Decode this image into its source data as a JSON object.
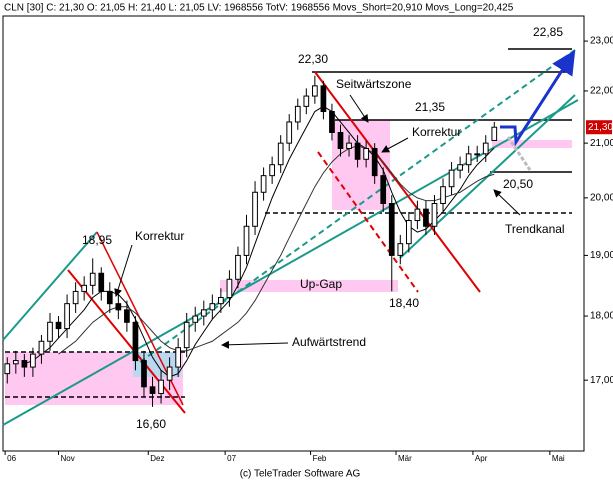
{
  "header": "CLN [30]  C: 21,30 O: 21,05 H: 21,40 L: 21,05 LV: 1968556 TotV: 1968556 Movs_Short=20,910 Movs_Long=20,425",
  "footer": "(c) TeleTrader Software AG",
  "chart_data": {
    "type": "candlestick",
    "x": [
      1,
      3,
      5,
      7,
      9,
      11,
      13,
      15,
      17,
      19,
      21,
      23,
      25,
      27,
      29,
      31,
      33,
      35,
      37,
      39,
      41,
      43,
      45,
      47,
      49,
      51,
      53,
      55,
      57,
      59,
      61,
      63,
      65,
      67,
      69,
      71,
      73,
      75,
      77,
      79,
      81,
      83,
      85,
      87,
      89,
      91,
      93,
      95,
      97,
      99,
      101,
      103,
      105,
      107,
      109,
      111,
      113,
      115
    ],
    "open": [
      17.1,
      17.25,
      17.3,
      17.2,
      17.4,
      17.6,
      17.9,
      17.8,
      18.2,
      18.4,
      18.5,
      18.7,
      18.4,
      18.2,
      18.1,
      17.9,
      17.3,
      16.9,
      16.8,
      17.0,
      17.2,
      17.5,
      17.9,
      18.0,
      18.1,
      18.2,
      18.3,
      18.6,
      19.0,
      19.5,
      20.1,
      20.4,
      20.6,
      21.0,
      21.4,
      21.7,
      21.9,
      22.1,
      21.6,
      21.2,
      20.9,
      21.0,
      20.7,
      20.9,
      20.4,
      19.9,
      19.0,
      19.2,
      19.6,
      19.8,
      19.5,
      19.9,
      20.2,
      20.5,
      20.6,
      20.8,
      20.8,
      21.05
    ],
    "high": [
      17.35,
      17.45,
      17.4,
      17.5,
      17.7,
      18.05,
      18.0,
      18.35,
      18.55,
      18.65,
      18.95,
      18.8,
      18.55,
      18.35,
      18.25,
      18.0,
      17.45,
      17.05,
      17.15,
      17.35,
      17.65,
      18.05,
      18.15,
      18.25,
      18.35,
      18.45,
      18.75,
      19.15,
      19.7,
      20.3,
      20.55,
      20.75,
      21.15,
      21.55,
      21.85,
      22.05,
      22.3,
      22.2,
      21.75,
      21.35,
      21.15,
      21.15,
      21.05,
      21.0,
      20.55,
      20.05,
      19.35,
      19.75,
      19.95,
      19.95,
      20.05,
      20.35,
      20.65,
      20.75,
      20.95,
      20.95,
      21.15,
      21.4
    ],
    "low": [
      16.95,
      17.1,
      17.05,
      17.05,
      17.25,
      17.45,
      17.65,
      17.65,
      18.05,
      18.25,
      18.35,
      18.25,
      18.05,
      17.95,
      17.75,
      17.15,
      16.75,
      16.6,
      16.65,
      16.85,
      17.05,
      17.35,
      17.75,
      17.85,
      17.95,
      18.05,
      18.15,
      18.45,
      18.85,
      19.35,
      19.95,
      20.25,
      20.45,
      20.85,
      21.25,
      21.55,
      21.75,
      21.45,
      21.05,
      20.75,
      20.75,
      20.55,
      20.55,
      20.25,
      19.75,
      18.4,
      18.85,
      19.05,
      19.45,
      19.35,
      19.35,
      19.75,
      20.05,
      20.35,
      20.45,
      20.65,
      20.65,
      21.05
    ],
    "close": [
      17.25,
      17.3,
      17.2,
      17.4,
      17.6,
      17.9,
      17.8,
      18.2,
      18.4,
      18.5,
      18.7,
      18.4,
      18.2,
      18.1,
      17.9,
      17.3,
      16.9,
      16.8,
      17.0,
      17.2,
      17.5,
      17.9,
      18.0,
      18.1,
      18.2,
      18.3,
      18.6,
      19.0,
      19.5,
      20.1,
      20.4,
      20.6,
      21.0,
      21.4,
      21.7,
      21.9,
      22.1,
      21.6,
      21.2,
      20.9,
      21.0,
      20.7,
      20.9,
      20.4,
      19.9,
      19.0,
      19.2,
      19.6,
      19.8,
      19.5,
      19.9,
      20.2,
      20.5,
      20.6,
      20.8,
      20.8,
      21.0,
      21.3
    ],
    "up_color": "#ffffff",
    "down_color": "#000000",
    "series": [
      {
        "color": "#000000",
        "values": [
          null,
          null,
          17.25,
          17.3,
          17.4,
          17.5,
          17.65,
          17.8,
          17.95,
          18.1,
          18.3,
          18.4,
          18.4,
          18.35,
          18.2,
          17.95,
          17.65,
          17.35,
          17.15,
          17.05,
          17.1,
          17.3,
          17.55,
          17.75,
          17.95,
          18.1,
          18.25,
          18.5,
          18.8,
          19.2,
          19.6,
          20.0,
          20.35,
          20.7,
          21.0,
          21.3,
          21.6,
          21.7,
          21.6,
          21.4,
          21.2,
          21.0,
          20.9,
          20.75,
          20.5,
          20.1,
          19.75,
          19.5,
          19.4,
          19.45,
          19.6,
          19.75,
          19.95,
          20.15,
          20.4,
          20.6,
          20.75,
          20.91
        ]
      },
      {
        "color": "#333333",
        "values": [
          null,
          null,
          null,
          null,
          null,
          null,
          17.4,
          17.5,
          17.6,
          17.75,
          17.9,
          18.0,
          18.1,
          18.15,
          18.15,
          18.05,
          17.9,
          17.75,
          17.6,
          17.5,
          17.45,
          17.45,
          17.5,
          17.55,
          17.6,
          17.7,
          17.8,
          17.9,
          18.05,
          18.25,
          18.5,
          18.75,
          19.0,
          19.3,
          19.6,
          19.9,
          20.2,
          20.45,
          20.65,
          20.8,
          20.9,
          20.95,
          20.9,
          20.8,
          20.65,
          20.45,
          20.25,
          20.1,
          20.0,
          19.95,
          19.95,
          20.0,
          20.05,
          20.1,
          20.2,
          20.3,
          20.38,
          20.425
        ]
      }
    ],
    "xlim": [
      0,
      136
    ],
    "xticks": [
      {
        "value": 0.5,
        "label": "06"
      },
      {
        "value": 13,
        "label": "Nov"
      },
      {
        "value": 34,
        "label": "Dez"
      },
      {
        "value": 52,
        "label": "07"
      },
      {
        "value": 72,
        "label": "Feb"
      },
      {
        "value": 92,
        "label": "Mär"
      },
      {
        "value": 110,
        "label": "Apr"
      },
      {
        "value": 128,
        "label": "Mai"
      }
    ],
    "ylim": [
      15.96,
      23.52
    ],
    "log_scale": true,
    "yticks": [
      {
        "value": 17,
        "label": "17,00"
      },
      {
        "value": 18,
        "label": "18,00"
      },
      {
        "value": 19,
        "label": "19,00"
      },
      {
        "value": 20,
        "label": "20,00"
      },
      {
        "value": 21,
        "label": "21,00"
      },
      {
        "value": 22,
        "label": "22,00"
      },
      {
        "value": 23,
        "label": "23,00"
      }
    ],
    "last_price": {
      "value": 21.3,
      "label": "21,30"
    },
    "annotations": [
      "22,30",
      "Seitwärtszone",
      "21,35",
      "Korrektur",
      "Korrektur",
      "18,95",
      "16,60",
      "Up-Gap",
      "18,40",
      "Aufwärtstrend",
      "20,50",
      "Trendkanal",
      "22,85"
    ]
  }
}
